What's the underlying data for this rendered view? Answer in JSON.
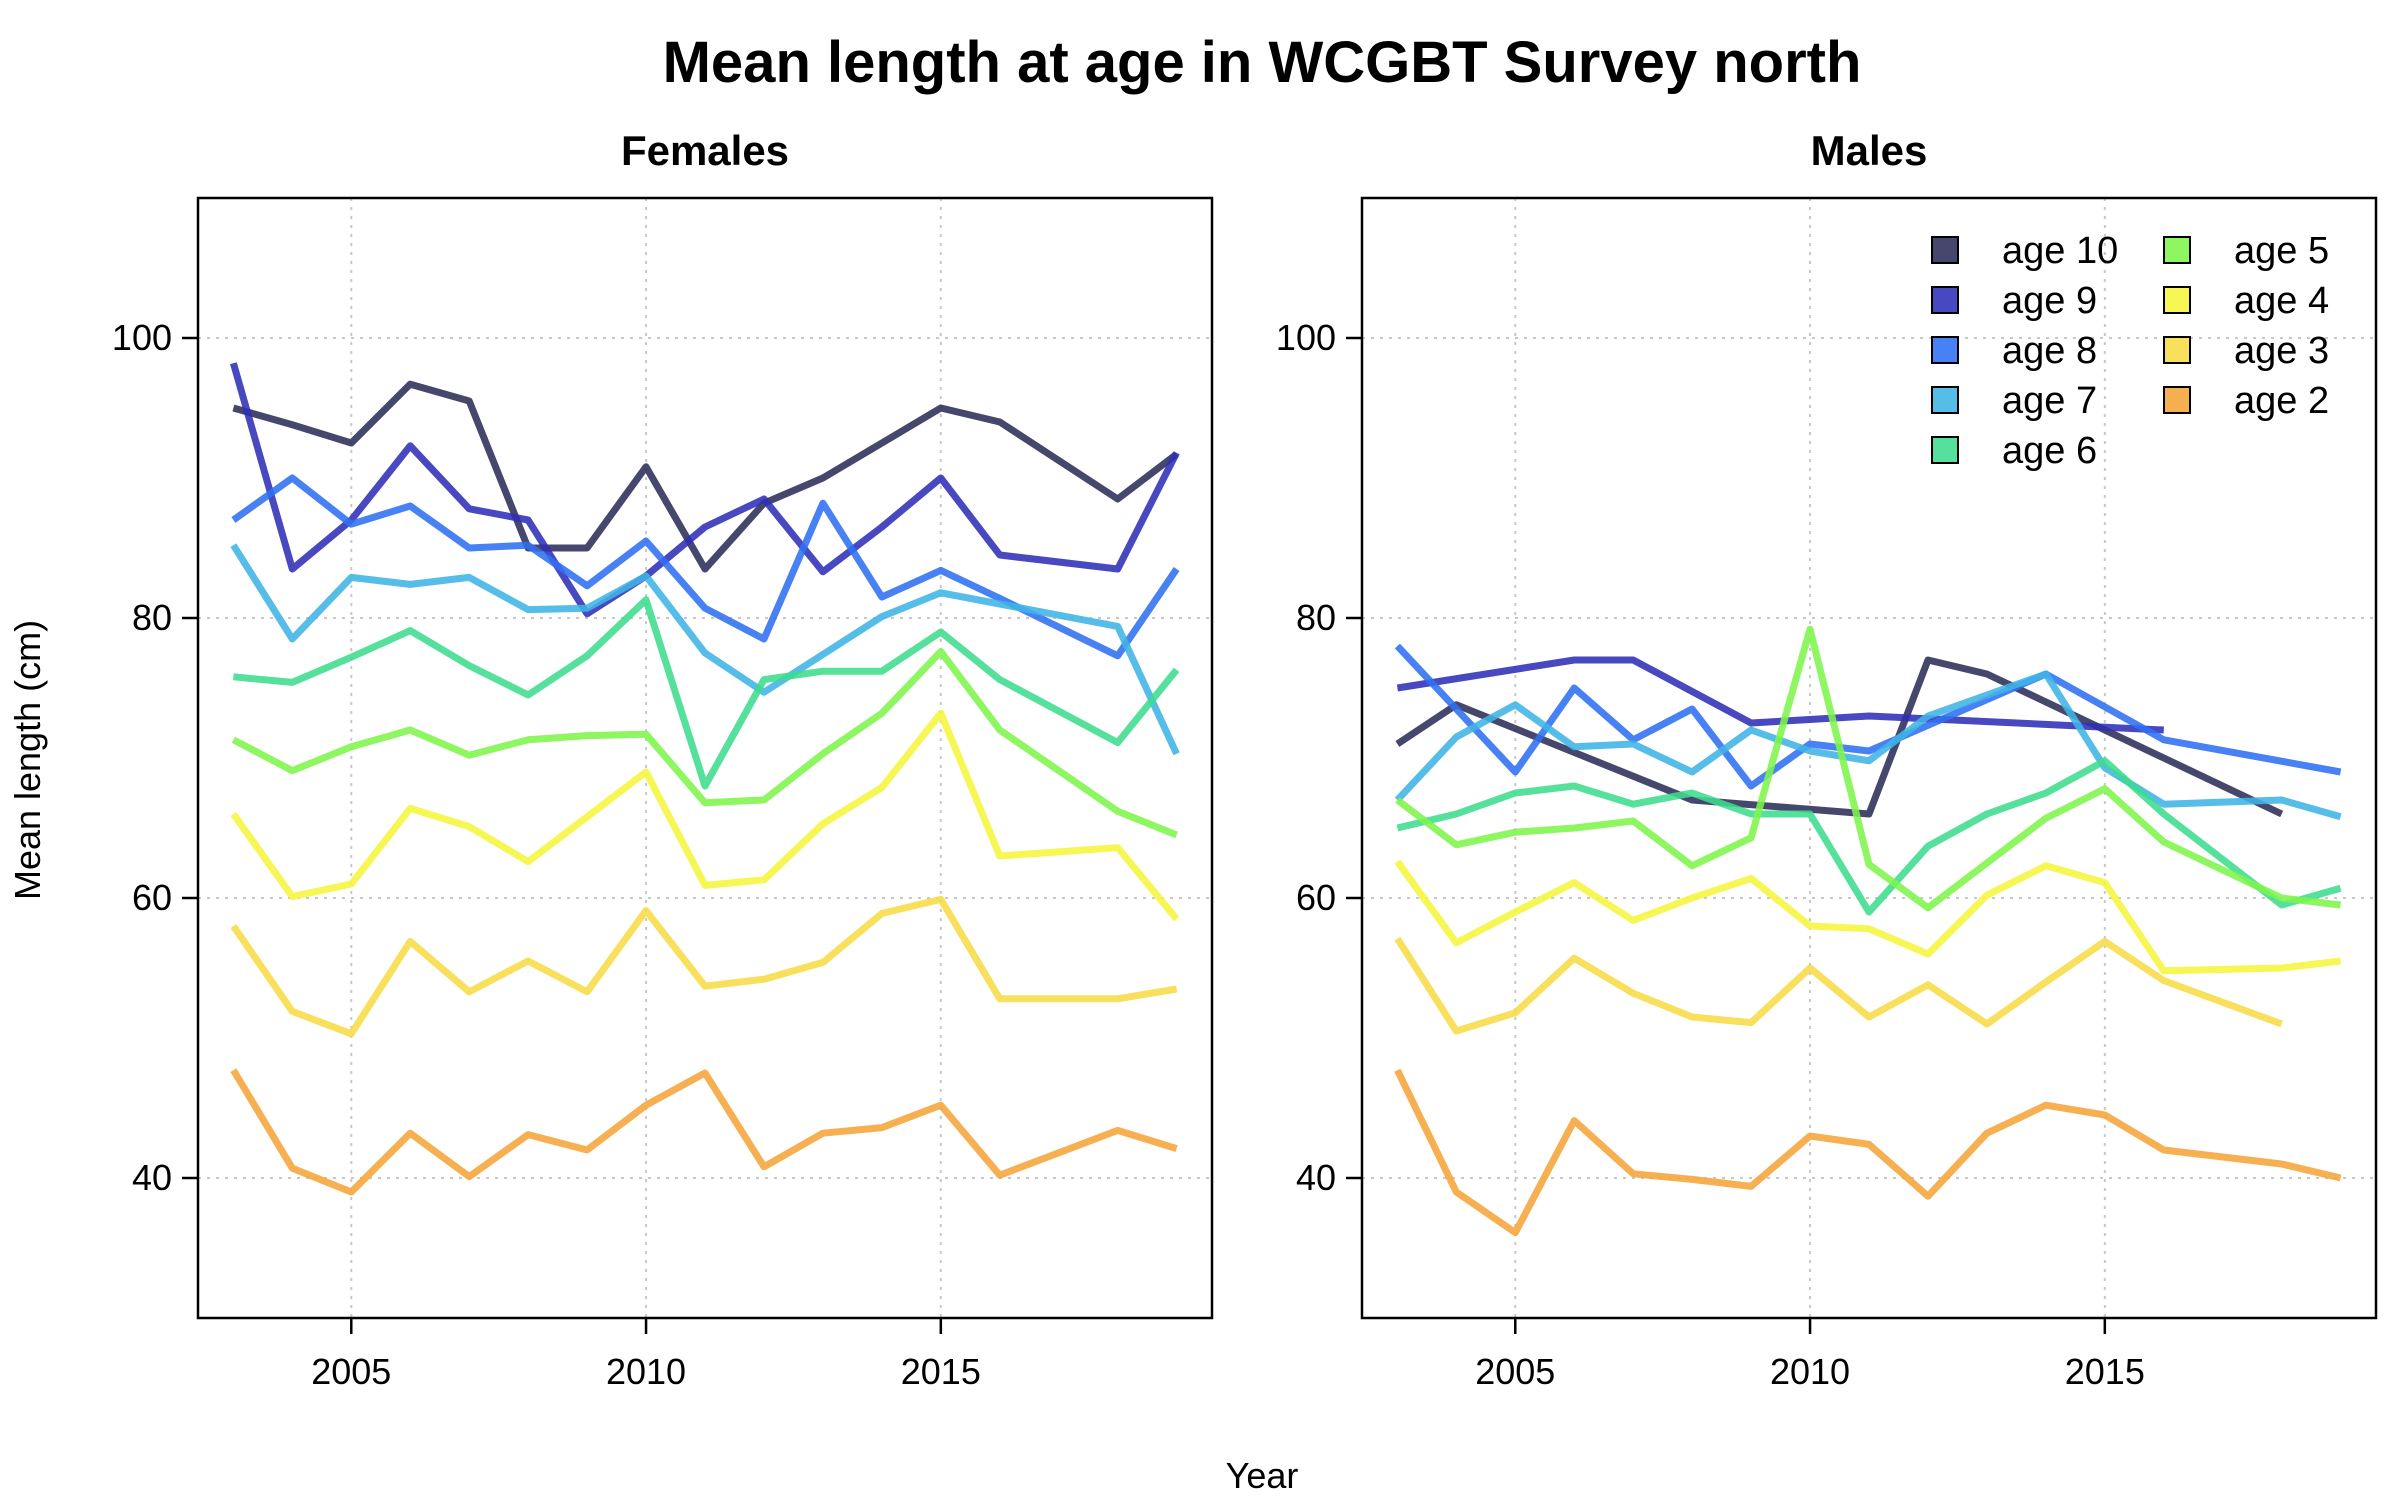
{
  "title": "Mean length at age in WCGBT Survey north",
  "xlabel": "Year",
  "ylabel": "Mean length (cm)",
  "legend": [
    {
      "label": "age 10",
      "color": "#2c2e59"
    },
    {
      "label": "age 9",
      "color": "#2f2fb8"
    },
    {
      "label": "age 8",
      "color": "#2f6ff2"
    },
    {
      "label": "age 7",
      "color": "#3fb4e6"
    },
    {
      "label": "age 6",
      "color": "#3ddc8e"
    },
    {
      "label": "age 5",
      "color": "#7df54b"
    },
    {
      "label": "age 4",
      "color": "#f5f53d"
    },
    {
      "label": "age 3",
      "color": "#f7dc45"
    },
    {
      "label": "age 2",
      "color": "#f5a53a"
    }
  ],
  "chart_data": [
    {
      "type": "line",
      "title": "Females",
      "xlim": [
        2002.4,
        2019.6
      ],
      "ylim": [
        30,
        110
      ],
      "xticks": [
        2005,
        2010,
        2015
      ],
      "yticks": [
        40,
        60,
        80,
        100
      ],
      "grid": true,
      "series": [
        {
          "name": "age 10",
          "x": [
            2003,
            2004,
            2005,
            2006,
            2007,
            2008,
            2009,
            2010,
            2011,
            2012,
            2013,
            2014,
            2015,
            2016,
            2018,
            2019
          ],
          "y": [
            95,
            93.8,
            92.5,
            96.7,
            95.5,
            85,
            85,
            90.8,
            83.5,
            88.2,
            90,
            92.5,
            95,
            94,
            88.5,
            91.7
          ]
        },
        {
          "name": "age 9",
          "x": [
            2003,
            2004,
            2005,
            2006,
            2007,
            2008,
            2009,
            2010,
            2011,
            2012,
            2013,
            2014,
            2015,
            2016,
            2018,
            2019
          ],
          "y": [
            98.2,
            83.5,
            87,
            92.3,
            87.8,
            87,
            80.3,
            83,
            86.5,
            88.5,
            83.3,
            86.5,
            90,
            84.5,
            83.5,
            91.8
          ]
        },
        {
          "name": "age 8",
          "x": [
            2003,
            2004,
            2005,
            2006,
            2007,
            2008,
            2009,
            2010,
            2011,
            2012,
            2013,
            2014,
            2015,
            2016,
            2018,
            2019
          ],
          "y": [
            87,
            90,
            86.7,
            88,
            85,
            85.2,
            82.3,
            85.5,
            80.7,
            78.5,
            88.2,
            81.5,
            83.4,
            81.4,
            77.3,
            83.5
          ]
        },
        {
          "name": "age 7",
          "x": [
            2003,
            2004,
            2005,
            2006,
            2007,
            2008,
            2009,
            2010,
            2011,
            2012,
            2013,
            2014,
            2015,
            2016,
            2018,
            2019
          ],
          "y": [
            85.2,
            78.5,
            82.9,
            82.4,
            82.9,
            80.6,
            80.7,
            83,
            77.5,
            74.7,
            77.4,
            80.1,
            81.8,
            81,
            79.4,
            70.3
          ]
        },
        {
          "name": "age 6",
          "x": [
            2003,
            2004,
            2005,
            2006,
            2007,
            2008,
            2009,
            2010,
            2011,
            2012,
            2013,
            2014,
            2015,
            2016,
            2018,
            2019
          ],
          "y": [
            75.8,
            75.4,
            77.2,
            79.1,
            76.6,
            74.5,
            77.3,
            81.3,
            68,
            75.6,
            76.2,
            76.2,
            79,
            75.6,
            71.1,
            76.3
          ]
        },
        {
          "name": "age 5",
          "x": [
            2003,
            2004,
            2005,
            2006,
            2007,
            2008,
            2009,
            2010,
            2011,
            2012,
            2013,
            2014,
            2015,
            2016,
            2018,
            2019
          ],
          "y": [
            71.3,
            69.1,
            70.8,
            72,
            70.2,
            71.3,
            71.6,
            71.7,
            66.8,
            67,
            70.3,
            73.2,
            77.6,
            72,
            66.2,
            64.5
          ]
        },
        {
          "name": "age 4",
          "x": [
            2003,
            2004,
            2005,
            2006,
            2007,
            2008,
            2009,
            2010,
            2011,
            2012,
            2013,
            2014,
            2015,
            2016,
            2018,
            2019
          ],
          "y": [
            66,
            60.1,
            61,
            66.4,
            65.1,
            62.6,
            65.8,
            69,
            60.9,
            61.3,
            65.3,
            67.9,
            73.2,
            63,
            63.6,
            58.5
          ]
        },
        {
          "name": "age 3",
          "x": [
            2003,
            2004,
            2005,
            2006,
            2007,
            2008,
            2009,
            2010,
            2011,
            2012,
            2013,
            2014,
            2015,
            2016,
            2018,
            2019
          ],
          "y": [
            58,
            51.9,
            50.3,
            56.9,
            53.3,
            55.5,
            53.3,
            59.1,
            53.7,
            54.2,
            55.4,
            58.9,
            59.9,
            52.8,
            52.8,
            53.5
          ]
        },
        {
          "name": "age 2",
          "x": [
            2003,
            2004,
            2005,
            2006,
            2007,
            2008,
            2009,
            2010,
            2011,
            2012,
            2013,
            2014,
            2015,
            2016,
            2018,
            2019
          ],
          "y": [
            47.7,
            40.7,
            39,
            43.2,
            40.1,
            43.1,
            42,
            45.2,
            47.5,
            40.8,
            43.2,
            43.6,
            45.2,
            40.2,
            43.4,
            42.1
          ]
        }
      ]
    },
    {
      "type": "line",
      "title": "Males",
      "xlim": [
        2002.4,
        2019.6
      ],
      "ylim": [
        30,
        110
      ],
      "xticks": [
        2005,
        2010,
        2015
      ],
      "yticks": [
        40,
        60,
        80,
        100
      ],
      "grid": true,
      "legend_position": "top-right",
      "series": [
        {
          "name": "age 10",
          "x": [
            2003,
            2004,
            2008,
            2011,
            2012,
            2013,
            2018
          ],
          "y": [
            71,
            73.8,
            67,
            66,
            77,
            76,
            66
          ]
        },
        {
          "name": "age 9",
          "x": [
            2003,
            2006,
            2007,
            2009,
            2011,
            2016
          ],
          "y": [
            75,
            77,
            77,
            72.5,
            73,
            72
          ]
        },
        {
          "name": "age 8",
          "x": [
            2003,
            2004,
            2005,
            2006,
            2007,
            2008,
            2009,
            2010,
            2011,
            2014,
            2016,
            2019
          ],
          "y": [
            78,
            73.5,
            69,
            75,
            71.3,
            73.5,
            68,
            71,
            70.5,
            76,
            71.3,
            69
          ]
        },
        {
          "name": "age 7",
          "x": [
            2003,
            2004,
            2005,
            2006,
            2007,
            2008,
            2009,
            2010,
            2011,
            2012,
            2013,
            2014,
            2015,
            2016,
            2018,
            2019
          ],
          "y": [
            67,
            71.5,
            73.8,
            70.8,
            71,
            69,
            72,
            70.5,
            69.8,
            73,
            74.5,
            76,
            69.3,
            66.7,
            67,
            65.8
          ]
        },
        {
          "name": "age 6",
          "x": [
            2003,
            2004,
            2005,
            2006,
            2007,
            2008,
            2009,
            2010,
            2011,
            2012,
            2013,
            2014,
            2015,
            2016,
            2018,
            2019
          ],
          "y": [
            65,
            66,
            67.5,
            68,
            66.7,
            67.5,
            66,
            66,
            59,
            63.7,
            66,
            67.5,
            69.8,
            66,
            59.5,
            60.7
          ]
        },
        {
          "name": "age 5",
          "x": [
            2003,
            2004,
            2005,
            2006,
            2007,
            2008,
            2009,
            2010,
            2011,
            2012,
            2013,
            2014,
            2015,
            2016,
            2018,
            2019
          ],
          "y": [
            67,
            63.8,
            64.7,
            65,
            65.5,
            62.3,
            64.3,
            79.2,
            62.4,
            59.3,
            62.5,
            65.7,
            67.8,
            64,
            60,
            59.5
          ]
        },
        {
          "name": "age 4",
          "x": [
            2003,
            2004,
            2005,
            2006,
            2007,
            2008,
            2009,
            2010,
            2011,
            2012,
            2013,
            2014,
            2015,
            2016,
            2018,
            2019
          ],
          "y": [
            62.6,
            56.8,
            59,
            61.1,
            58.4,
            60,
            61.4,
            58,
            57.8,
            56,
            60.2,
            62.3,
            61.1,
            54.8,
            55,
            55.5
          ]
        },
        {
          "name": "age 3",
          "x": [
            2003,
            2004,
            2005,
            2006,
            2007,
            2008,
            2009,
            2010,
            2011,
            2012,
            2013,
            2014,
            2015,
            2016,
            2018
          ],
          "y": [
            57.1,
            50.5,
            51.8,
            55.7,
            53.2,
            51.5,
            51.1,
            55,
            51.5,
            53.8,
            51,
            54,
            56.9,
            54.1,
            51
          ]
        },
        {
          "name": "age 2",
          "x": [
            2003,
            2004,
            2005,
            2006,
            2007,
            2008,
            2009,
            2010,
            2011,
            2012,
            2013,
            2014,
            2015,
            2016,
            2018,
            2019
          ],
          "y": [
            47.7,
            39,
            36.1,
            44.1,
            40.3,
            39.9,
            39.4,
            43,
            42.4,
            38.7,
            43.2,
            45.2,
            44.5,
            42,
            41,
            40
          ]
        }
      ]
    }
  ]
}
